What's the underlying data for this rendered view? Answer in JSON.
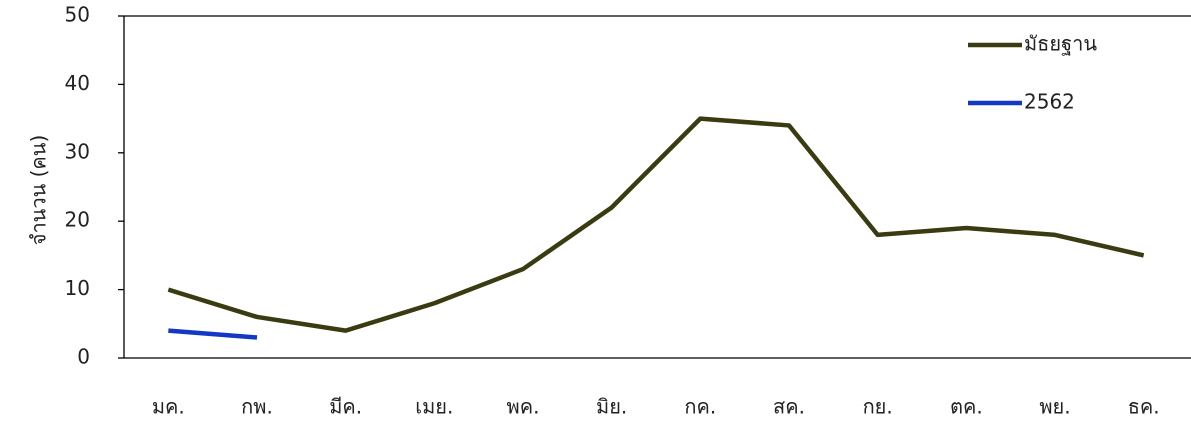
{
  "chart_data": {
    "type": "line",
    "y_label": "จำนวน (คน)",
    "categories": [
      "มค.",
      "กพ.",
      "มีค.",
      "เมย.",
      "พค.",
      "มิย.",
      "กค.",
      "สค.",
      "กย.",
      "ตค.",
      "พย.",
      "ธค."
    ],
    "series": [
      {
        "name": "มัธยฐาน",
        "color": "#3b3b12",
        "values": [
          10,
          6,
          4,
          8,
          13,
          22,
          35,
          34,
          18,
          19,
          18,
          15
        ]
      },
      {
        "name": "2562",
        "color": "#1238c4",
        "values": [
          4,
          3,
          null,
          null,
          null,
          null,
          null,
          null,
          null,
          null,
          null,
          null
        ]
      }
    ],
    "ylim": [
      0,
      50
    ],
    "yticks": [
      0,
      10,
      20,
      30,
      40,
      50
    ],
    "legend": "upper right"
  }
}
